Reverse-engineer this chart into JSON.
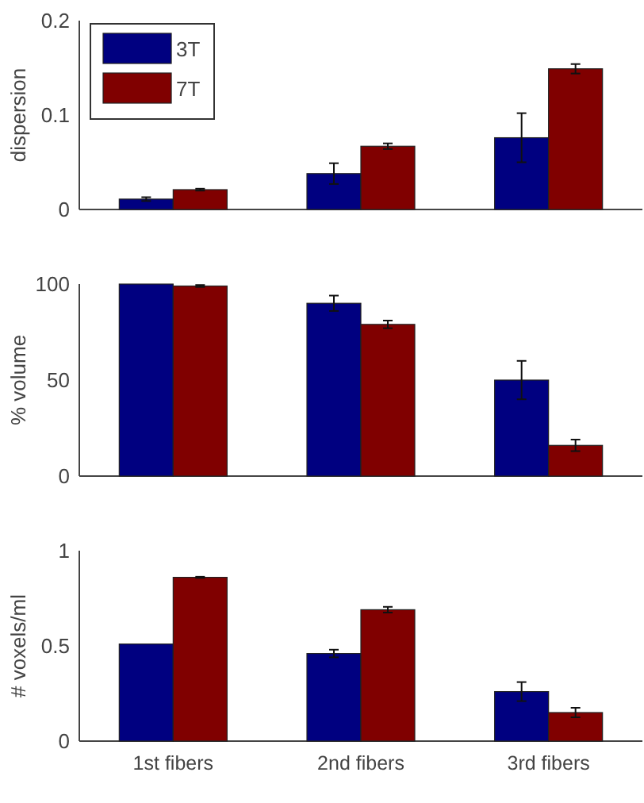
{
  "chart_data": [
    {
      "type": "bar",
      "ylabel": "dispersion",
      "categories": [
        null,
        null,
        null
      ],
      "ylim": [
        0,
        0.2
      ],
      "yticks": [
        0,
        0.1,
        0.2
      ],
      "tick_labels": "y",
      "legend": "top left",
      "series": [
        {
          "name": "3T",
          "color": "#000080",
          "values": [
            0.011,
            0.038,
            0.076
          ],
          "errors": [
            0.002,
            0.011,
            0.026
          ]
        },
        {
          "name": "7T",
          "color": "#800000",
          "values": [
            0.021,
            0.067,
            0.149
          ],
          "errors": [
            0.001,
            0.003,
            0.005
          ]
        }
      ]
    },
    {
      "type": "bar",
      "ylabel": "% volume",
      "categories": [
        null,
        null,
        null
      ],
      "ylim": [
        0,
        100
      ],
      "yticks": [
        0,
        50,
        100
      ],
      "tick_labels": "y",
      "series": [
        {
          "color": "#000080",
          "values": [
            100,
            90,
            50
          ],
          "errors": [
            null,
            4,
            10
          ]
        },
        {
          "color": "#800000",
          "values": [
            99,
            79,
            16
          ],
          "errors": [
            0.5,
            2,
            3
          ]
        }
      ]
    },
    {
      "type": "bar",
      "ylabel": "# voxels/ml",
      "categories": [
        "1st fibers",
        "2nd fibers",
        "3rd fibers"
      ],
      "ylim": [
        0,
        1
      ],
      "yticks": [
        0,
        0.5,
        1
      ],
      "series": [
        {
          "color": "#000080",
          "values": [
            0.51,
            0.46,
            0.26
          ],
          "errors": [
            null,
            0.02,
            0.05
          ]
        },
        {
          "color": "#800000",
          "values": [
            0.86,
            0.69,
            0.15
          ],
          "errors": [
            0.003,
            0.015,
            0.025
          ]
        }
      ]
    }
  ]
}
